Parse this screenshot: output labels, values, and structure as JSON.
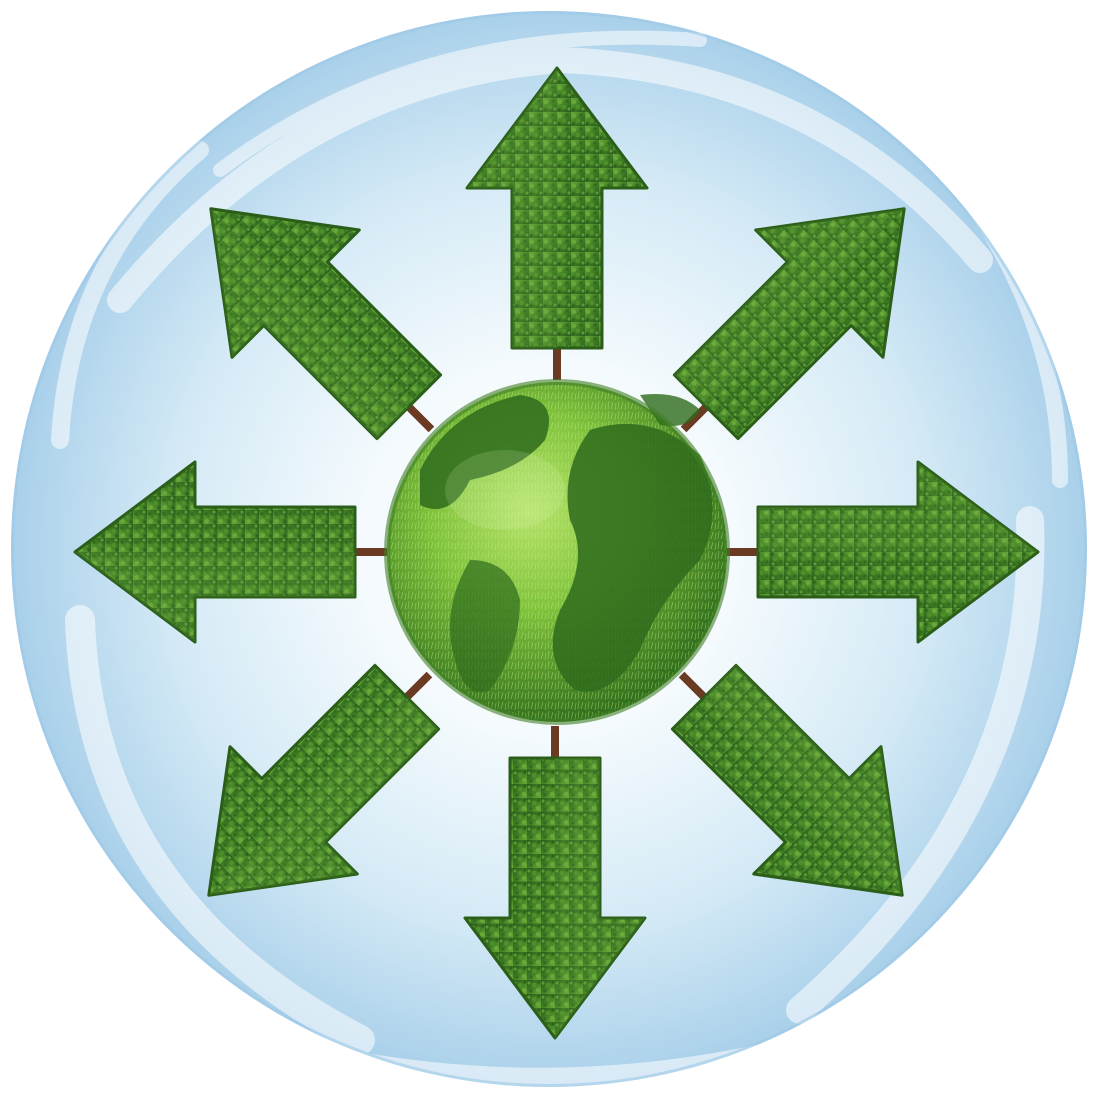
{
  "image": {
    "subject": "globe-with-tree-arrows",
    "arrow_count": 8,
    "arrow_directions": [
      "up",
      "up-right",
      "right",
      "down-right",
      "down",
      "down-left",
      "left",
      "up-left"
    ],
    "colors": {
      "page_background": "#ffffff",
      "sky_light": "#f4fafd",
      "sky_mid": "#d5eaf6",
      "sky_edge": "#a9d0ea",
      "cloud": "#ffffff",
      "foliage_dark": "#2f6a1c",
      "foliage_mid": "#4c8d2b",
      "foliage_light": "#79b843",
      "trunk": "#6a3a22",
      "globe_ocean": "#8fcf3f",
      "globe_land": "#2e6b1c"
    }
  }
}
